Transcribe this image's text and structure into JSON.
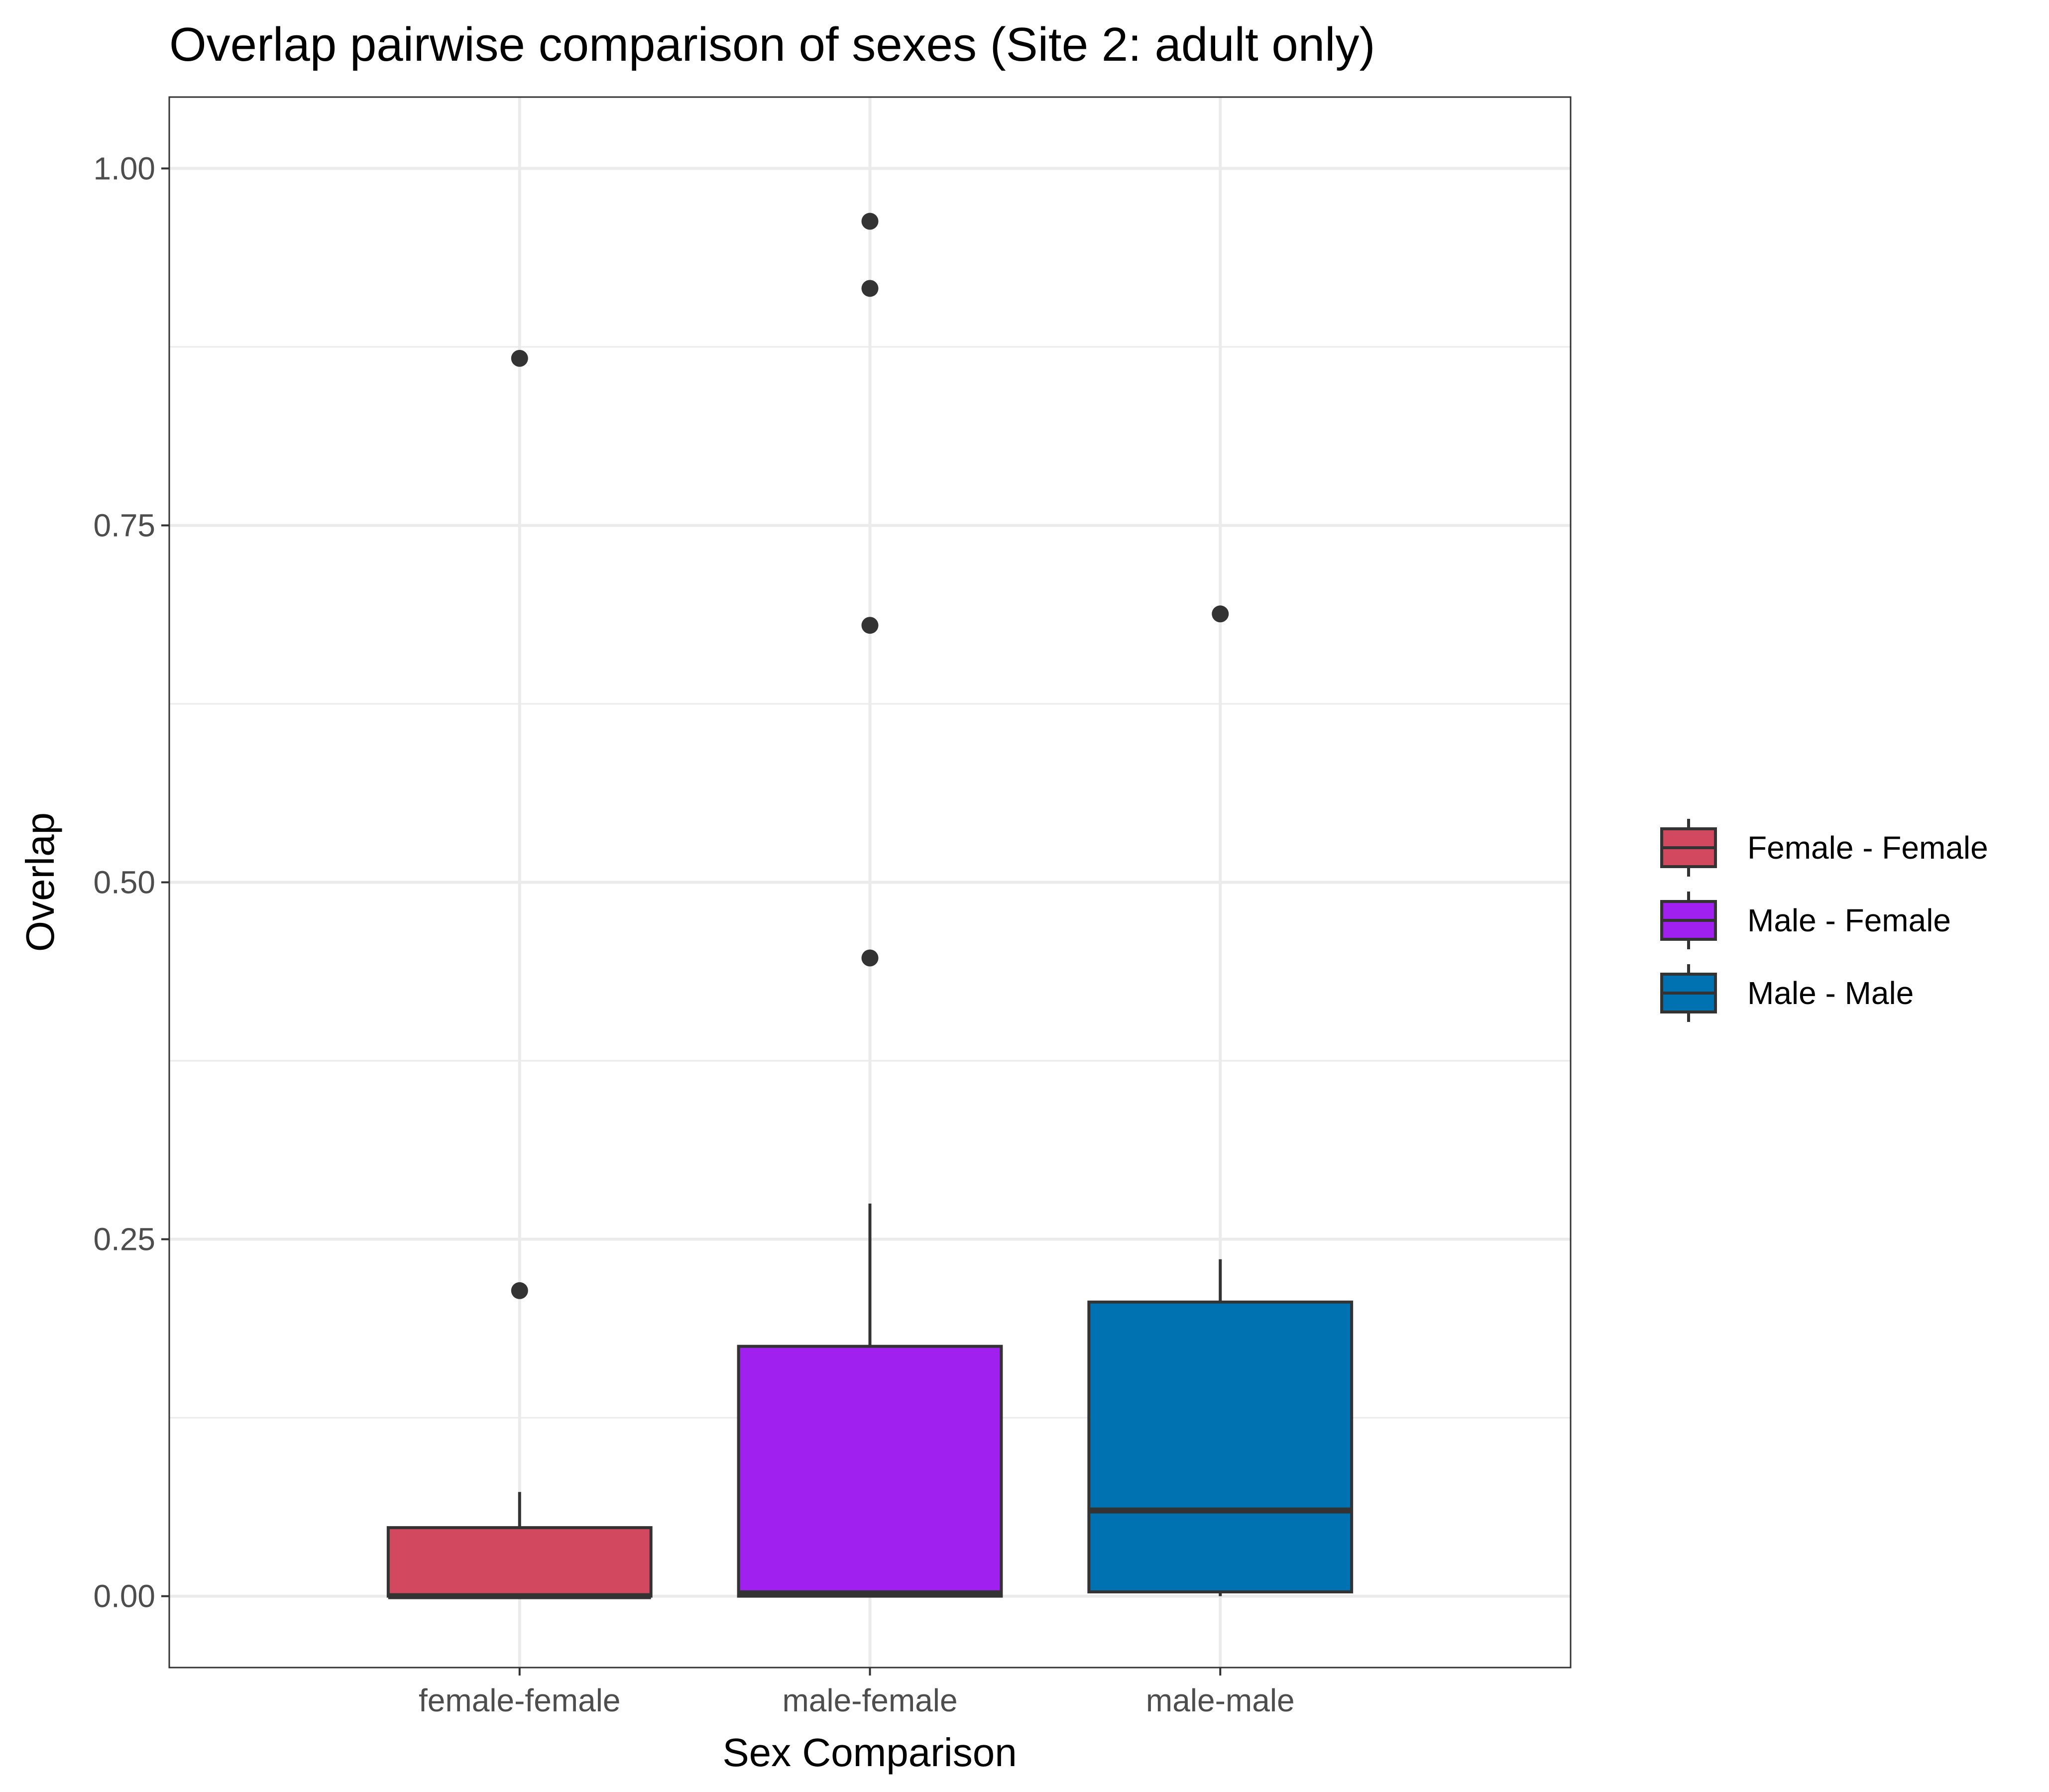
{
  "chart_data": {
    "type": "box",
    "title": "Overlap pairwise comparison of sexes (Site 2: adult only)",
    "xlabel": "Sex Comparison",
    "ylabel": "Overlap",
    "ylim": [
      -0.05,
      1.05
    ],
    "yticks": [
      0.0,
      0.25,
      0.5,
      0.75,
      1.0
    ],
    "ytick_labels": [
      "0.00",
      "0.25",
      "0.50",
      "0.75",
      "1.00"
    ],
    "grid": true,
    "legend_position": "right",
    "categories": [
      "female-female",
      "male-female",
      "male-male"
    ],
    "boxes": [
      {
        "category": "female-female",
        "legend_label": "Female - Female",
        "color": "#D2495F",
        "whisker_low": 0.0,
        "q1": 0.0,
        "median": 0.0,
        "q3": 0.048,
        "whisker_high": 0.073,
        "outliers": [
          0.214,
          0.867
        ]
      },
      {
        "category": "male-female",
        "legend_label": "Male - Female",
        "color": "#A020F0",
        "whisker_low": 0.0,
        "q1": 0.0,
        "median": 0.002,
        "q3": 0.175,
        "whisker_high": 0.275,
        "outliers": [
          0.447,
          0.68,
          0.916,
          0.963
        ]
      },
      {
        "category": "male-male",
        "legend_label": "Male - Male",
        "color": "#0072B2",
        "whisker_low": 0.0,
        "q1": 0.003,
        "median": 0.06,
        "q3": 0.206,
        "whisker_high": 0.236,
        "outliers": [
          0.688
        ]
      }
    ]
  }
}
